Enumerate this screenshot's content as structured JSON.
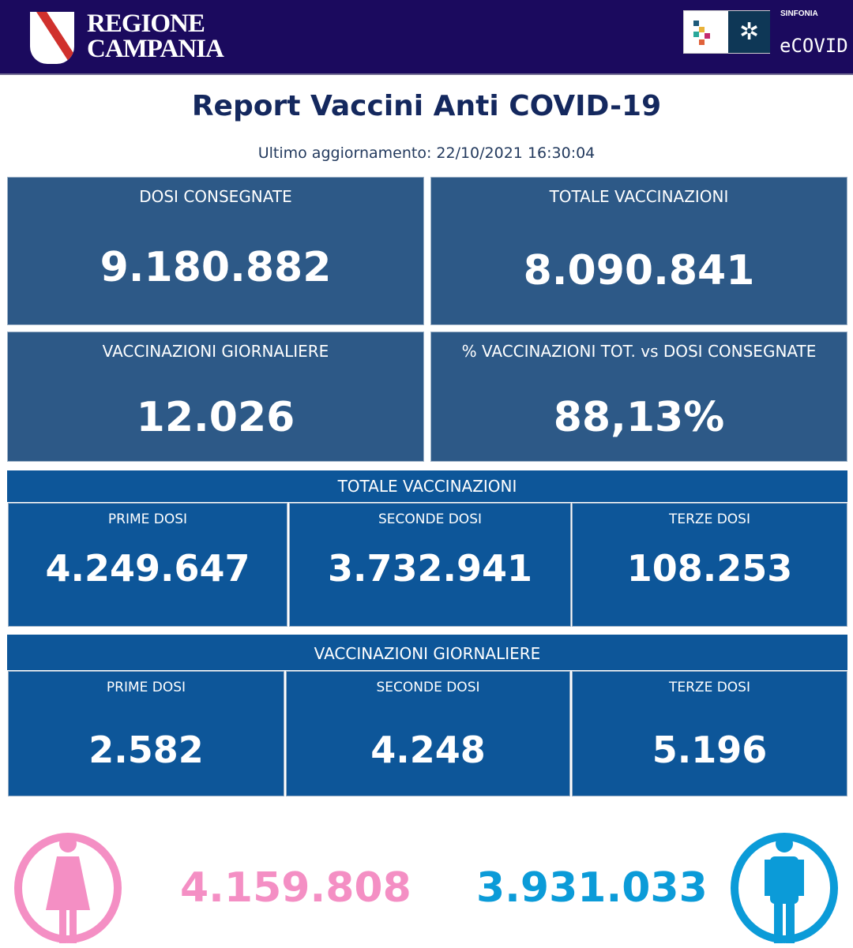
{
  "header": {
    "region_line1": "REGIONE",
    "region_line2": "CAMPANIA",
    "brand_small": "SINFONIA",
    "brand": "eCOVID",
    "colors": {
      "bar": "#1b0a5e"
    }
  },
  "title": "Report Vaccini Anti COVID-19",
  "last_update": "Ultimo aggiornamento: 22/10/2021  16:30:04",
  "kpis": [
    {
      "label": "DOSI  CONSEGNATE",
      "value": "9.180.882"
    },
    {
      "label": "TOTALE VACCINAZIONI",
      "value": "8.090.841"
    },
    {
      "label": "VACCINAZIONI GIORNALIERE",
      "value": "12.026"
    },
    {
      "label": "% VACCINAZIONI TOT. vs DOSI CONSEGNATE",
      "value": "88,13%"
    }
  ],
  "totale": {
    "title": "TOTALE VACCINAZIONI",
    "cells": [
      {
        "label": "PRIME DOSI",
        "value": "4.249.647"
      },
      {
        "label": "SECONDE DOSI",
        "value": "3.732.941"
      },
      {
        "label": "TERZE DOSI",
        "value": "108.253"
      }
    ]
  },
  "giornaliere": {
    "title": "VACCINAZIONI GIORNALIERE",
    "cells": [
      {
        "label": "PRIME DOSI",
        "value": "2.582"
      },
      {
        "label": "SECONDE DOSI",
        "value": "4.248"
      },
      {
        "label": "TERZE DOSI",
        "value": "5.196"
      }
    ]
  },
  "gender": {
    "female": "4.159.808",
    "male": "3.931.033",
    "colors": {
      "female": "#f48fc4",
      "male": "#0b9bd8"
    }
  }
}
